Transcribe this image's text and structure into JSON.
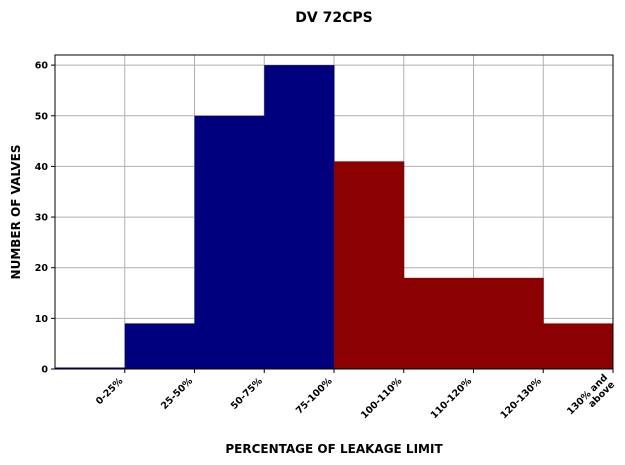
{
  "chart_data": {
    "type": "bar",
    "title": "DV 72CPS",
    "xlabel": "PERCENTAGE OF LEAKAGE LIMIT",
    "ylabel": "NUMBER OF VALVES",
    "categories": [
      "0-25%",
      "25-50%",
      "50-75%",
      "75-100%",
      "100-110%",
      "110-120%",
      "120-130%",
      "130% and above"
    ],
    "values": [
      0,
      9,
      50,
      60,
      41,
      18,
      18,
      9
    ],
    "bar_colors": [
      "#00007f",
      "#00007f",
      "#00007f",
      "#00007f",
      "#8b0000",
      "#8b0000",
      "#8b0000",
      "#8b0000"
    ],
    "ylim": [
      0,
      62
    ],
    "yticks": [
      0,
      10,
      20,
      30,
      40,
      50,
      60
    ],
    "grid": true
  }
}
